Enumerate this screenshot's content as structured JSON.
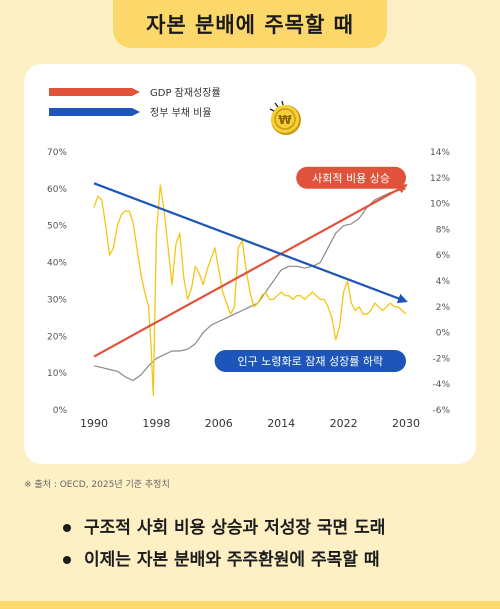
{
  "header": {
    "title": "자본 분배에 주목할 때"
  },
  "chart_data": {
    "type": "line",
    "title": "",
    "x": {
      "ticks": [
        1990,
        1998,
        2006,
        2014,
        2022,
        2030
      ],
      "range": [
        1990,
        2030
      ]
    },
    "y_left": {
      "ticks": [
        "0%",
        "10%",
        "20%",
        "30%",
        "40%",
        "50%",
        "60%",
        "70%"
      ],
      "range": [
        0,
        70
      ],
      "unit": "%"
    },
    "y_right": {
      "ticks": [
        "14%",
        "12%",
        "10%",
        "8%",
        "6%",
        "4%",
        "2%",
        "0%",
        "-2%",
        "-4%",
        "-6%"
      ],
      "range": [
        -6,
        14
      ],
      "unit": "%"
    },
    "legend": [
      {
        "label": "GDP 잠재성장률",
        "color": "#e0533a"
      },
      {
        "label": "정부 부채 비율",
        "color": "#1d56b8"
      }
    ],
    "series": [
      {
        "name": "GDP 잠재성장률",
        "kind": "trend-arrow",
        "color": "#e0533a",
        "axis": "left",
        "x": [
          1990,
          2030
        ],
        "y": [
          14.5,
          61
        ]
      },
      {
        "name": "정부 부채 비율",
        "kind": "trend-arrow",
        "color": "#1d56b8",
        "axis": "left",
        "x": [
          1990,
          2030
        ],
        "y": [
          61.5,
          29.5
        ]
      },
      {
        "kind": "line",
        "color": "#f5c518",
        "axis": "left",
        "x": [
          1990,
          1990.5,
          1991,
          1991.5,
          1992,
          1992.5,
          1993,
          1993.5,
          1994,
          1994.5,
          1995,
          1995.5,
          1996,
          1996.5,
          1997,
          1997.3,
          1997.6,
          1998,
          1998.5,
          1999,
          1999.5,
          2000,
          2000.5,
          2001,
          2001.5,
          2002,
          2002.5,
          2003,
          2003.5,
          2004,
          2004.5,
          2005,
          2005.5,
          2006,
          2006.5,
          2007,
          2007.5,
          2008,
          2008.5,
          2009,
          2009.5,
          2010,
          2010.5,
          2011,
          2011.5,
          2012,
          2012.5,
          2013,
          2013.5,
          2014,
          2014.5,
          2015,
          2015.5,
          2016,
          2016.5,
          2017,
          2017.5,
          2018,
          2018.5,
          2019,
          2019.5,
          2020,
          2020.5,
          2021,
          2021.5,
          2022,
          2022.5,
          2023,
          2023.5,
          2024,
          2024.5,
          2025,
          2025.5,
          2026,
          2026.5,
          2027,
          2027.5,
          2028,
          2028.5,
          2029,
          2029.5,
          2030
        ],
        "y": [
          55,
          58,
          57,
          50,
          42,
          44,
          50,
          53,
          54,
          54,
          51,
          44,
          37,
          32,
          28,
          18,
          4,
          48,
          61,
          54,
          44,
          34,
          45,
          48,
          36,
          30,
          33,
          39,
          37,
          34,
          38,
          41,
          44,
          38,
          32,
          29,
          26,
          28,
          44,
          46,
          38,
          32,
          28,
          29,
          31,
          32,
          30,
          30,
          31,
          32,
          31,
          31,
          30,
          31,
          31,
          30,
          31,
          32,
          31,
          30,
          30,
          28,
          25,
          19,
          23,
          32,
          35,
          29,
          27,
          28,
          26,
          26,
          27,
          29,
          28,
          27,
          28,
          29,
          28,
          28,
          27,
          26
        ]
      },
      {
        "kind": "line",
        "color": "#8a8a8a",
        "axis": "left",
        "x": [
          1990,
          1991,
          1992,
          1993,
          1994,
          1995,
          1996,
          1997,
          1998,
          1999,
          2000,
          2001,
          2002,
          2003,
          2004,
          2005,
          2006,
          2007,
          2008,
          2009,
          2010,
          2011,
          2012,
          2013,
          2014,
          2015,
          2016,
          2017,
          2018,
          2019,
          2020,
          2021,
          2022,
          2023,
          2024,
          2025,
          2026,
          2027,
          2028,
          2029,
          2030
        ],
        "y": [
          12,
          11.5,
          11,
          10.5,
          9,
          8,
          9.5,
          12,
          14,
          15,
          16,
          16,
          16.5,
          18,
          21,
          23,
          24,
          25,
          26,
          27,
          28,
          29,
          32,
          35,
          38,
          39,
          39,
          38.5,
          39,
          40,
          44,
          48,
          50,
          50.5,
          52,
          55,
          57,
          58,
          59,
          59.5,
          60
        ]
      }
    ],
    "annotations": [
      {
        "text": "사회적 비용 상승",
        "color": "#e0533a",
        "at_x": 2030,
        "at_axis": "right",
        "at_y": 12,
        "anchor": "end"
      },
      {
        "text": "인구 노령화로 잠재 성장률 하락",
        "color": "#1d56b8",
        "at_x": 2030,
        "at_axis": "right",
        "at_y": -2.2,
        "anchor": "end"
      }
    ],
    "grid": false
  },
  "footer": {
    "source": "※ 출처 : OECD, 2025년 기준 추정치",
    "bullets": [
      "구조적 사회 비용 상승과 저성장 국면 도래",
      "이제는 자본 분배와 주주환원에 주목할 때"
    ]
  },
  "decor": {
    "coin_icon": "won-coin-icon"
  }
}
